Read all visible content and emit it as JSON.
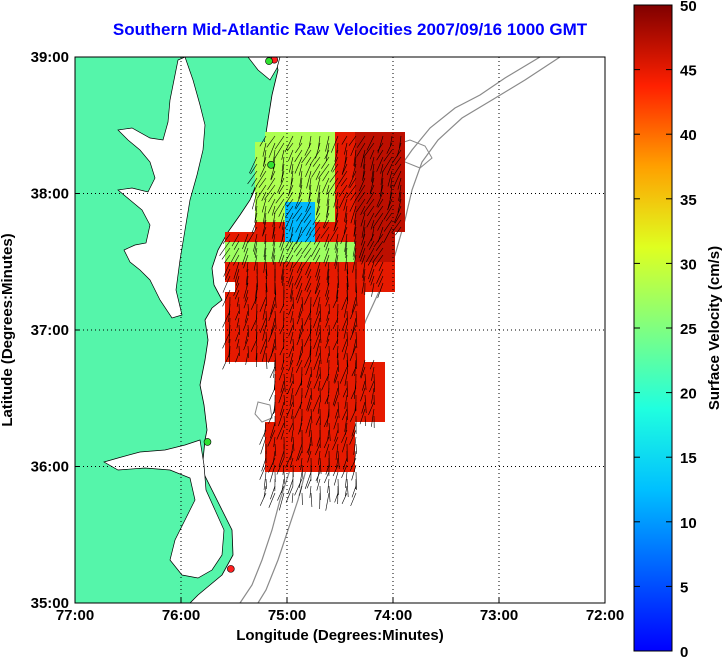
{
  "title": "Southern Mid-Atlantic Raw Velocities 2007/09/16 1000 GMT",
  "map": {
    "xlabel": "Longitude (Degrees:Minutes)",
    "ylabel": "Latitude (Degrees:Minutes)",
    "lon_ticks": [
      "77:00",
      "76:00",
      "75:00",
      "74:00",
      "73:00",
      "72:00"
    ],
    "lat_ticks": [
      "39:00",
      "38:00",
      "37:00",
      "36:00",
      "35:00"
    ],
    "lon_range": [
      -77,
      -72
    ],
    "lat_range": [
      35,
      39
    ],
    "grid": "dotted",
    "land_color": "#55f5aa",
    "stations": [
      {
        "lon": -75.12,
        "lat": 38.98,
        "color": "#ff2020"
      },
      {
        "lon": -75.17,
        "lat": 38.97,
        "color": "#30e030"
      },
      {
        "lon": -75.15,
        "lat": 38.21,
        "color": "#30e030"
      },
      {
        "lon": -75.75,
        "lat": 36.18,
        "color": "#30e030"
      },
      {
        "lon": -75.53,
        "lat": 35.25,
        "color": "#ff2020"
      }
    ]
  },
  "colorbar": {
    "label": "Surface Velocity (cm/s)",
    "ticks": [
      "0",
      "5",
      "10",
      "15",
      "20",
      "25",
      "30",
      "35",
      "40",
      "45",
      "50"
    ],
    "min": 0,
    "max": 50
  }
}
